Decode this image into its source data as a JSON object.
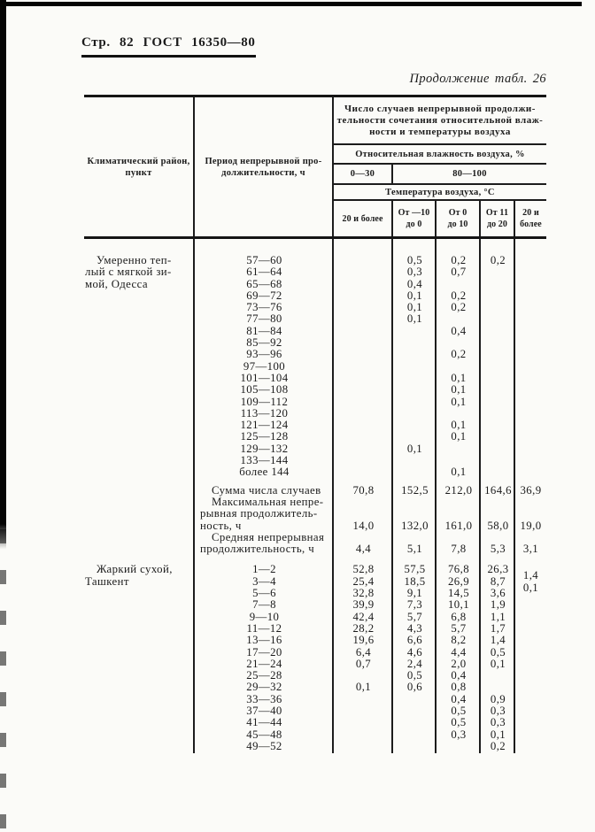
{
  "page_header": {
    "title": "Стр. 82 ГОСТ 16350—80"
  },
  "table_caption": "Продолжение табл. 26",
  "table": {
    "header": {
      "col_region": "Климатический район,\nпункт",
      "col_period": "Период непрерывной про-\nдолжительности, ч",
      "count_caption": "Число случаев непрерывной продолжи-\nтельности сочетания относительной влаж-\nности и температуры воздуха",
      "humidity_caption": "Относительная влажность воздуха, %",
      "humidity_ranges": [
        "0—30",
        "80—100"
      ],
      "temp_caption": "Температура воздуха, °С",
      "temp_ranges": [
        "20 и более",
        "От —10\nдо 0",
        "От 0\nдо 10",
        "От 11\nдо 20",
        "20 и\nболее"
      ]
    },
    "sections": [
      {
        "region_lines": [
          "Умеренно теп-",
          "лый с мягкой зи-",
          "мой, Одесса"
        ],
        "rows": [
          {
            "p": "57—60",
            "v": [
              "",
              "0,5",
              "0,2",
              "0,2",
              ""
            ]
          },
          {
            "p": "61—64",
            "v": [
              "",
              "0,3",
              "0,7",
              "",
              ""
            ]
          },
          {
            "p": "65—68",
            "v": [
              "",
              "0,4",
              "",
              "",
              ""
            ]
          },
          {
            "p": "69—72",
            "v": [
              "",
              "0,1",
              "0,2",
              "",
              ""
            ]
          },
          {
            "p": "73—76",
            "v": [
              "",
              "0,1",
              "0,2",
              "",
              ""
            ]
          },
          {
            "p": "77—80",
            "v": [
              "",
              "0,1",
              "",
              "",
              ""
            ]
          },
          {
            "p": "81—84",
            "v": [
              "",
              "",
              "0,4",
              "",
              ""
            ]
          },
          {
            "p": "85—92",
            "v": [
              "",
              "",
              "",
              "",
              ""
            ]
          },
          {
            "p": "93—96",
            "v": [
              "",
              "",
              "0,2",
              "",
              ""
            ]
          },
          {
            "p": "97—100",
            "v": [
              "",
              "",
              "",
              "",
              ""
            ]
          },
          {
            "p": "101—104",
            "v": [
              "",
              "",
              "0,1",
              "",
              ""
            ]
          },
          {
            "p": "105—108",
            "v": [
              "",
              "",
              "0,1",
              "",
              ""
            ]
          },
          {
            "p": "109—112",
            "v": [
              "",
              "",
              "0,1",
              "",
              ""
            ]
          },
          {
            "p": "113—120",
            "v": [
              "",
              "",
              "",
              "",
              ""
            ]
          },
          {
            "p": "121—124",
            "v": [
              "",
              "",
              "0,1",
              "",
              ""
            ]
          },
          {
            "p": "125—128",
            "v": [
              "",
              "",
              "0,1",
              "",
              ""
            ]
          },
          {
            "p": "129—132",
            "v": [
              "",
              "0,1",
              "",
              "",
              ""
            ]
          },
          {
            "p": "133—144",
            "v": [
              "",
              "",
              "",
              "",
              ""
            ]
          },
          {
            "p": "более 144",
            "v": [
              "",
              "",
              "0,1",
              "",
              ""
            ]
          }
        ],
        "summary": [
          {
            "label_lines": [
              "Сумма числа случаев"
            ],
            "v": [
              "70,8",
              "152,5",
              "212,0",
              "164,6",
              "36,9"
            ]
          },
          {
            "label_lines": [
              "Максимальная непре-",
              "рывная продолжитель-",
              "ность, ч"
            ],
            "v": [
              "14,0",
              "132,0",
              "161,0",
              "58,0",
              "19,0"
            ]
          },
          {
            "label_lines": [
              "Средняя непрерывная",
              "продолжительность, ч"
            ],
            "v": [
              "4,4",
              "5,1",
              "7,8",
              "5,3",
              "3,1"
            ]
          }
        ]
      },
      {
        "region_lines": [
          "Жаркий сухой,",
          "Ташкент"
        ],
        "rows": [
          {
            "p": "1—2",
            "v": [
              "52,8",
              "57,5",
              "76,8",
              "26,3",
              "1,4"
            ],
            "shift7": true
          },
          {
            "p": "3—4",
            "v": [
              "25,4",
              "18,5",
              "26,9",
              "8,7",
              "0,1"
            ],
            "shift7": true
          },
          {
            "p": "5—6",
            "v": [
              "32,8",
              "9,1",
              "14,5",
              "3,6",
              ""
            ]
          },
          {
            "p": "7—8",
            "v": [
              "39,9",
              "7,3",
              "10,1",
              "1,9",
              ""
            ]
          },
          {
            "p": "9—10",
            "v": [
              "42,4",
              "5,7",
              "6,8",
              "1,1",
              ""
            ]
          },
          {
            "p": "11—12",
            "v": [
              "28,2",
              "4,3",
              "5,7",
              "1,7",
              ""
            ]
          },
          {
            "p": "13—16",
            "v": [
              "19,6",
              "6,6",
              "8,2",
              "1,4",
              ""
            ]
          },
          {
            "p": "17—20",
            "v": [
              "6,4",
              "4,6",
              "4,4",
              "0,5",
              ""
            ]
          },
          {
            "p": "21—24",
            "v": [
              "0,7",
              "2,4",
              "2,0",
              "0,1",
              ""
            ]
          },
          {
            "p": "25—28",
            "v": [
              "",
              "0,5",
              "0,4",
              "",
              ""
            ]
          },
          {
            "p": "29—32",
            "v": [
              "0,1",
              "0,6",
              "0,8",
              "",
              ""
            ]
          },
          {
            "p": "33—36",
            "v": [
              "",
              "",
              "0,4",
              "0,9",
              ""
            ]
          },
          {
            "p": "37—40",
            "v": [
              "",
              "",
              "0,5",
              "0,3",
              ""
            ]
          },
          {
            "p": "41—44",
            "v": [
              "",
              "",
              "0,5",
              "0,3",
              ""
            ]
          },
          {
            "p": "45—48",
            "v": [
              "",
              "",
              "0,3",
              "0,1",
              ""
            ]
          },
          {
            "p": "49—52",
            "v": [
              "",
              "",
              "",
              "0,2",
              ""
            ]
          }
        ],
        "summary": []
      }
    ]
  }
}
